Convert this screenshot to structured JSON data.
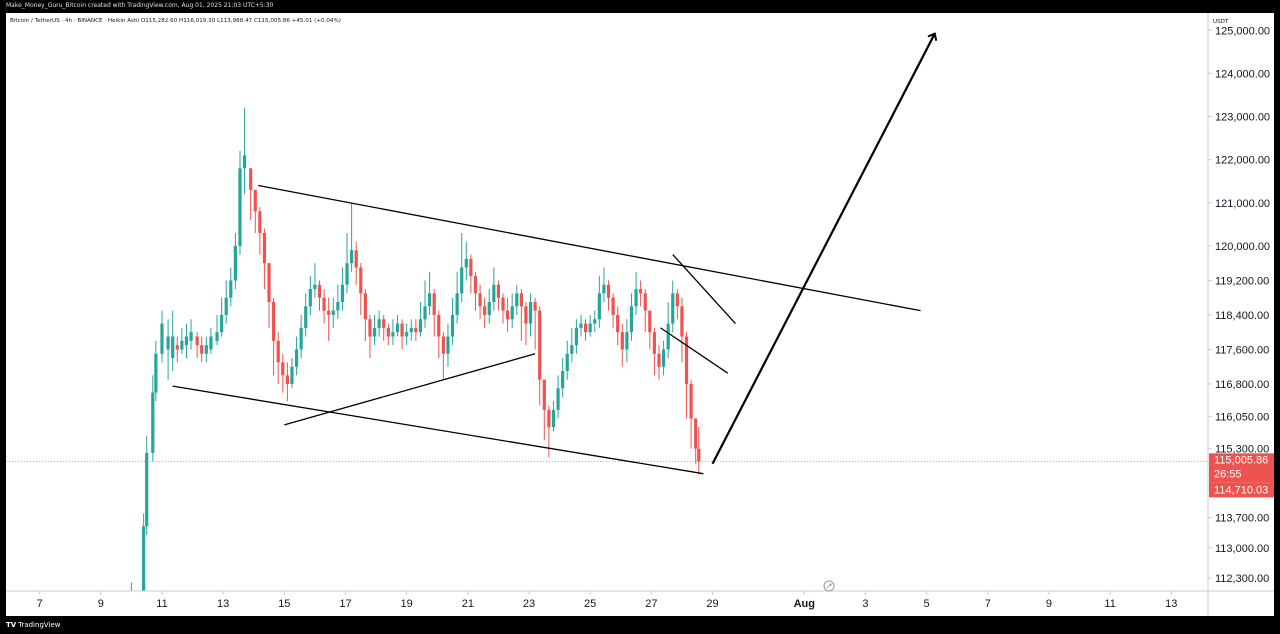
{
  "header": {
    "attribution": "Make_Money_Guru_Bitcoin created with TradingView.com, Aug 01, 2025 21:03 UTC+5:30"
  },
  "footer": {
    "brand": "TradingView",
    "brand_glyph": "TV"
  },
  "chart_data": {
    "type": "candlestick",
    "legend": "Bitcoin / TetherUS · 4h · BINANCE · Heikin Ashi  O115,282.60 H116,019.30 L113,988.47 C115,005.86 +45.01 (+0.04%)",
    "currency": "USDT",
    "ylim": [
      112000,
      125400
    ],
    "y_ticks": [
      "125,000.00",
      "124,000.00",
      "123,000.00",
      "122,000.00",
      "121,000.00",
      "120,000.00",
      "119,200.00",
      "118,400.00",
      "117,600.00",
      "116,800.00",
      "116,050.00",
      "115,300.00",
      "113,700.00",
      "113,000.00",
      "112,300.00"
    ],
    "y_tick_values": [
      125000,
      124000,
      123000,
      122000,
      121000,
      120000,
      119200,
      118400,
      117600,
      116800,
      116050,
      115300,
      113700,
      113000,
      112300
    ],
    "x_ticks": [
      "7",
      "9",
      "11",
      "13",
      "15",
      "17",
      "19",
      "21",
      "23",
      "25",
      "27",
      "29",
      "Aug",
      "3",
      "5",
      "7",
      "9",
      "11",
      "13"
    ],
    "x_tick_days": [
      7,
      9,
      11,
      13,
      15,
      17,
      19,
      21,
      23,
      25,
      27,
      29,
      32,
      34,
      36,
      38,
      40,
      42,
      44
    ],
    "xlim": [
      5.9,
      45.2
    ],
    "last_price": {
      "value": 115005.86,
      "label": "115,005.86",
      "countdown": "26:55"
    },
    "low_marker": {
      "value": 114710.03,
      "label": "114,710.03"
    },
    "colors": {
      "up": "#26a69a",
      "down": "#ef5350",
      "trendline": "#000000",
      "axis_text": "#131722",
      "grid": "#e0e3eb"
    },
    "candles": [
      [
        10.0,
        112000,
        112000,
        112200,
        111900
      ],
      [
        10.4,
        111700,
        113500,
        113800,
        111600
      ],
      [
        10.5,
        113500,
        115200,
        115600,
        113300
      ],
      [
        10.7,
        115200,
        116600,
        117000,
        115000
      ],
      [
        10.8,
        116600,
        117500,
        117800,
        116400
      ],
      [
        11.0,
        117500,
        118200,
        118500,
        117300
      ],
      [
        11.2,
        117600,
        117900,
        118300,
        116900
      ],
      [
        11.35,
        117400,
        117900,
        118500,
        117100
      ],
      [
        11.5,
        117700,
        117600,
        117900,
        117300
      ],
      [
        11.65,
        117600,
        117800,
        118100,
        117500
      ],
      [
        11.8,
        117700,
        117900,
        118200,
        117400
      ],
      [
        11.95,
        117800,
        118000,
        118300,
        117600
      ],
      [
        12.15,
        117900,
        117700,
        118000,
        117400
      ],
      [
        12.3,
        117700,
        117500,
        117900,
        117300
      ],
      [
        12.45,
        117500,
        117700,
        117900,
        117300
      ],
      [
        12.6,
        117600,
        117900,
        118100,
        117500
      ],
      [
        12.8,
        117800,
        118000,
        118400,
        117700
      ],
      [
        12.95,
        118000,
        118400,
        118800,
        117900
      ],
      [
        13.1,
        118400,
        118800,
        119200,
        118200
      ],
      [
        13.25,
        118800,
        119200,
        119500,
        118600
      ],
      [
        13.4,
        119200,
        120000,
        120300,
        119000
      ],
      [
        13.55,
        120000,
        121800,
        122200,
        119800
      ],
      [
        13.7,
        121800,
        122100,
        123200,
        121200
      ],
      [
        13.9,
        121800,
        121300,
        121800,
        120600
      ],
      [
        14.05,
        121300,
        120800,
        121300,
        120300
      ],
      [
        14.2,
        120800,
        120300,
        120900,
        119800
      ],
      [
        14.35,
        120300,
        119600,
        120400,
        119000
      ],
      [
        14.5,
        119600,
        118700,
        119600,
        118100
      ],
      [
        14.65,
        118700,
        117800,
        118800,
        117000
      ],
      [
        14.8,
        117800,
        117300,
        118000,
        116800
      ],
      [
        14.95,
        117300,
        117000,
        117500,
        116600
      ],
      [
        15.1,
        117000,
        116800,
        117300,
        116400
      ],
      [
        15.25,
        116800,
        117200,
        117400,
        116700
      ],
      [
        15.4,
        117200,
        117600,
        117900,
        117000
      ],
      [
        15.55,
        117600,
        118100,
        118400,
        117400
      ],
      [
        15.7,
        118100,
        118600,
        118900,
        117900
      ],
      [
        15.85,
        118600,
        119000,
        119300,
        118400
      ],
      [
        16.0,
        119000,
        119100,
        119600,
        118800
      ],
      [
        16.15,
        119100,
        118800,
        119200,
        118500
      ],
      [
        16.3,
        118800,
        118500,
        119000,
        118200
      ],
      [
        16.45,
        118500,
        118400,
        118800,
        117800
      ],
      [
        16.6,
        118400,
        118500,
        118800,
        118100
      ],
      [
        16.75,
        118500,
        118700,
        119100,
        118300
      ],
      [
        16.9,
        118700,
        119100,
        119500,
        118500
      ],
      [
        17.05,
        119100,
        119600,
        120300,
        118900
      ],
      [
        17.2,
        119600,
        119900,
        121000,
        119400
      ],
      [
        17.35,
        119900,
        119500,
        120100,
        119100
      ],
      [
        17.5,
        119500,
        118900,
        119600,
        118400
      ],
      [
        17.65,
        118900,
        118300,
        119000,
        117800
      ],
      [
        17.8,
        118300,
        117900,
        118400,
        117400
      ],
      [
        17.95,
        117900,
        118100,
        118400,
        117700
      ],
      [
        18.1,
        118100,
        118300,
        118500,
        117900
      ],
      [
        18.25,
        118300,
        118100,
        118400,
        117800
      ],
      [
        18.4,
        118100,
        117900,
        118200,
        117700
      ],
      [
        18.55,
        117900,
        118000,
        118300,
        117700
      ],
      [
        18.7,
        118000,
        118200,
        118400,
        117900
      ],
      [
        18.85,
        118200,
        117900,
        118300,
        117600
      ],
      [
        19.0,
        117900,
        118000,
        118200,
        117700
      ],
      [
        19.15,
        118000,
        118100,
        118300,
        117800
      ],
      [
        19.3,
        118100,
        118000,
        118300,
        117800
      ],
      [
        19.45,
        118000,
        118300,
        118700,
        117900
      ],
      [
        19.6,
        118300,
        118600,
        119200,
        118100
      ],
      [
        19.75,
        118600,
        118900,
        119400,
        118400
      ],
      [
        19.9,
        118900,
        118400,
        119000,
        117900
      ],
      [
        20.05,
        118400,
        117900,
        118500,
        117400
      ],
      [
        20.2,
        117900,
        117500,
        118000,
        116900
      ],
      [
        20.35,
        117500,
        117900,
        118200,
        117200
      ],
      [
        20.5,
        117900,
        118400,
        118800,
        117700
      ],
      [
        20.65,
        118400,
        118900,
        119400,
        118200
      ],
      [
        20.8,
        118900,
        119500,
        120300,
        118700
      ],
      [
        20.95,
        119500,
        119700,
        120100,
        119200
      ],
      [
        21.1,
        119700,
        119300,
        119800,
        118900
      ],
      [
        21.25,
        119300,
        118900,
        119400,
        118500
      ],
      [
        21.4,
        118900,
        118600,
        119100,
        118300
      ],
      [
        21.55,
        118600,
        118400,
        118800,
        118100
      ],
      [
        21.7,
        118400,
        118700,
        119000,
        118200
      ],
      [
        21.85,
        118700,
        119100,
        119500,
        118500
      ],
      [
        22.0,
        119100,
        118800,
        119200,
        118500
      ],
      [
        22.15,
        118800,
        118500,
        118900,
        118200
      ],
      [
        22.3,
        118500,
        118300,
        118800,
        118000
      ],
      [
        22.45,
        118300,
        118600,
        118900,
        118100
      ],
      [
        22.6,
        118600,
        118900,
        119100,
        118400
      ],
      [
        22.75,
        118900,
        118600,
        119000,
        117800
      ],
      [
        22.9,
        118600,
        118200,
        118700,
        117700
      ],
      [
        23.05,
        118200,
        118700,
        118900,
        117900
      ],
      [
        23.2,
        118700,
        118500,
        118800,
        117600
      ],
      [
        23.35,
        118500,
        116900,
        118600,
        116300
      ],
      [
        23.5,
        116900,
        116200,
        116900,
        115500
      ],
      [
        23.65,
        116200,
        115800,
        116300,
        115100
      ],
      [
        23.8,
        115800,
        116200,
        116400,
        115700
      ],
      [
        23.95,
        116200,
        116700,
        117000,
        116000
      ],
      [
        24.1,
        116700,
        117100,
        117400,
        116500
      ],
      [
        24.25,
        117100,
        117500,
        117800,
        116900
      ],
      [
        24.4,
        117500,
        117700,
        118100,
        117300
      ],
      [
        24.55,
        117700,
        118100,
        118300,
        117500
      ],
      [
        24.7,
        118100,
        118200,
        118400,
        117900
      ],
      [
        24.85,
        118200,
        118000,
        118300,
        117800
      ],
      [
        25.0,
        118000,
        118200,
        118400,
        117900
      ],
      [
        25.15,
        118200,
        118300,
        118500,
        118000
      ],
      [
        25.3,
        118300,
        118900,
        119300,
        118100
      ],
      [
        25.45,
        118900,
        119100,
        119500,
        118700
      ],
      [
        25.6,
        119100,
        118800,
        119200,
        118500
      ],
      [
        25.75,
        118800,
        118400,
        118900,
        118100
      ],
      [
        25.9,
        118400,
        118000,
        118600,
        117700
      ],
      [
        26.05,
        118000,
        117600,
        118200,
        117200
      ],
      [
        26.2,
        117600,
        118000,
        118300,
        117300
      ],
      [
        26.35,
        118000,
        118600,
        118900,
        117800
      ],
      [
        26.5,
        118600,
        119000,
        119400,
        118400
      ],
      [
        26.65,
        119000,
        118900,
        119200,
        118600
      ],
      [
        26.8,
        118900,
        118500,
        119000,
        118000
      ],
      [
        26.95,
        118500,
        118000,
        118500,
        117600
      ],
      [
        27.1,
        118000,
        117500,
        118100,
        117000
      ],
      [
        27.25,
        117500,
        117200,
        117700,
        116900
      ],
      [
        27.4,
        117200,
        117600,
        117800,
        117000
      ],
      [
        27.55,
        117600,
        118200,
        118700,
        117400
      ],
      [
        27.7,
        118200,
        118900,
        119200,
        118000
      ],
      [
        27.85,
        118900,
        118600,
        119000,
        118300
      ],
      [
        28.0,
        118600,
        117900,
        118800,
        117300
      ],
      [
        28.15,
        117900,
        116800,
        118000,
        116000
      ],
      [
        28.3,
        116800,
        116000,
        116900,
        115300
      ],
      [
        28.45,
        116000,
        115300,
        116000,
        114950
      ],
      [
        28.55,
        115300,
        115000,
        115800,
        114700
      ]
    ],
    "trendlines": [
      {
        "from": [
          14.15,
          121400
        ],
        "to": [
          35.8,
          118500
        ]
      },
      {
        "from": [
          11.35,
          116750
        ],
        "to": [
          28.7,
          114720
        ]
      },
      {
        "from": [
          15.0,
          115850
        ],
        "to": [
          23.2,
          117500
        ]
      },
      {
        "from": [
          27.7,
          119800
        ],
        "to": [
          29.75,
          118200
        ]
      },
      {
        "from": [
          27.3,
          118100
        ],
        "to": [
          29.5,
          117050
        ]
      },
      {
        "from": [
          29.0,
          114950
        ],
        "to": [
          36.25,
          124900
        ],
        "arrow": true
      }
    ]
  }
}
